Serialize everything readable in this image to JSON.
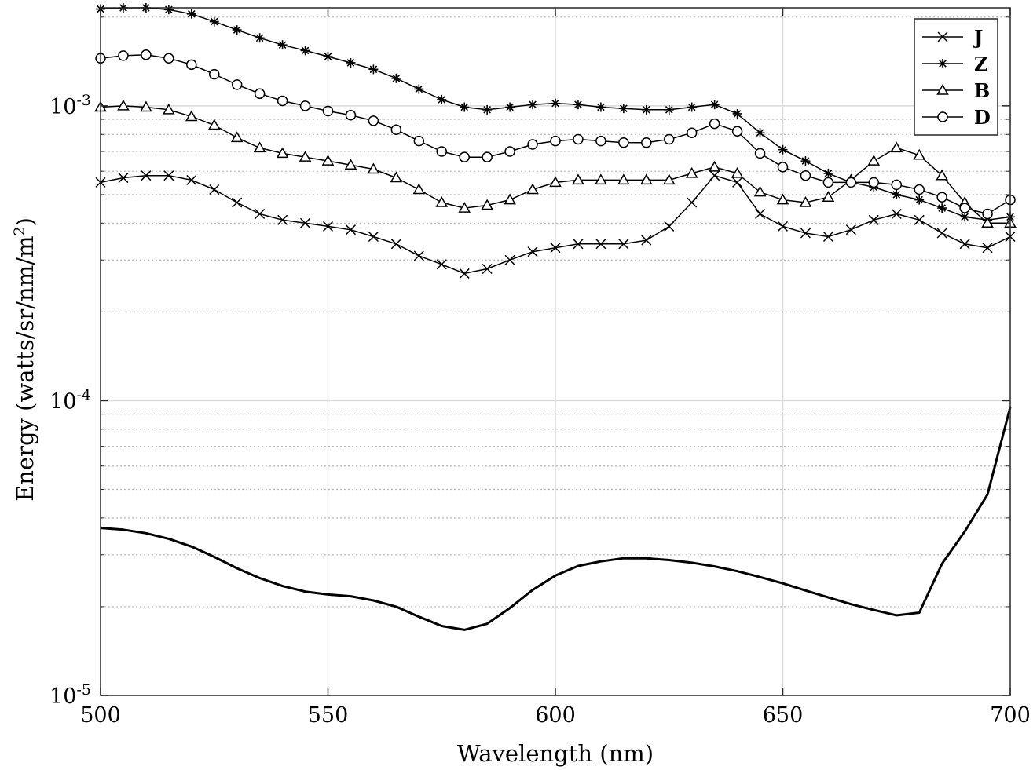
{
  "chart_data": {
    "type": "line",
    "xlabel": "Wavelength (nm)",
    "ylabel": "Energy (watts/sr/nm/m",
    "ylabel_sup": "2",
    "ylabel_end": ")",
    "xlim": [
      500,
      700
    ],
    "ylim": [
      1e-05,
      0.00215
    ],
    "yscale": "log",
    "grid": true,
    "minor_grid": "y",
    "legend_position": "top-right",
    "x_ticks": [
      500,
      550,
      600,
      650,
      700
    ],
    "x_tick_labels": [
      "500",
      "550",
      "600",
      "650",
      "700"
    ],
    "y_ticks": [
      {
        "value": 1e-05,
        "base": "10",
        "exp": "-5"
      },
      {
        "value": 0.0001,
        "base": "10",
        "exp": "-4"
      },
      {
        "value": 0.001,
        "base": "10",
        "exp": "-3"
      }
    ],
    "x": [
      500,
      505,
      510,
      515,
      520,
      525,
      530,
      535,
      540,
      545,
      550,
      555,
      560,
      565,
      570,
      575,
      580,
      585,
      590,
      595,
      600,
      605,
      610,
      615,
      620,
      625,
      630,
      635,
      640,
      645,
      650,
      655,
      660,
      665,
      670,
      675,
      680,
      685,
      690,
      695,
      700
    ],
    "series": [
      {
        "name": "J",
        "marker": "x",
        "values": [
          0.00055,
          0.00057,
          0.00058,
          0.00058,
          0.00056,
          0.00052,
          0.00047,
          0.00043,
          0.00041,
          0.0004,
          0.00039,
          0.00038,
          0.00036,
          0.00034,
          0.00031,
          0.00029,
          0.00027,
          0.00028,
          0.0003,
          0.00032,
          0.00033,
          0.00034,
          0.00034,
          0.00034,
          0.00035,
          0.00039,
          0.00047,
          0.00058,
          0.00055,
          0.00043,
          0.00039,
          0.00037,
          0.00036,
          0.00038,
          0.00041,
          0.00043,
          0.00041,
          0.00037,
          0.00034,
          0.00033,
          0.00036
        ]
      },
      {
        "name": "Z",
        "marker": "asterisk",
        "values": [
          0.00213,
          0.00215,
          0.00215,
          0.00212,
          0.00205,
          0.00193,
          0.00181,
          0.0017,
          0.00161,
          0.00154,
          0.00147,
          0.0014,
          0.00133,
          0.00124,
          0.00114,
          0.00105,
          0.00099,
          0.00097,
          0.00099,
          0.00101,
          0.00102,
          0.00101,
          0.00099,
          0.00098,
          0.00097,
          0.00097,
          0.00099,
          0.00101,
          0.00094,
          0.00081,
          0.00071,
          0.00065,
          0.00059,
          0.00055,
          0.00053,
          0.0005,
          0.00048,
          0.00045,
          0.00042,
          0.00041,
          0.00042
        ]
      },
      {
        "name": "B",
        "marker": "triangle",
        "values": [
          0.00099,
          0.001,
          0.00099,
          0.00097,
          0.00092,
          0.00086,
          0.00078,
          0.00072,
          0.00069,
          0.00067,
          0.00065,
          0.00063,
          0.00061,
          0.00057,
          0.00052,
          0.00047,
          0.00045,
          0.00046,
          0.00048,
          0.00052,
          0.00055,
          0.00056,
          0.00056,
          0.00056,
          0.00056,
          0.00056,
          0.00059,
          0.00062,
          0.00059,
          0.00051,
          0.00048,
          0.00047,
          0.00049,
          0.00056,
          0.00065,
          0.00072,
          0.00068,
          0.00058,
          0.00047,
          0.0004,
          0.0004
        ]
      },
      {
        "name": "D",
        "marker": "circle",
        "values": [
          0.00145,
          0.00148,
          0.00149,
          0.00145,
          0.00138,
          0.00128,
          0.00118,
          0.0011,
          0.00104,
          0.001,
          0.00096,
          0.00093,
          0.00089,
          0.00083,
          0.00076,
          0.0007,
          0.00067,
          0.00067,
          0.0007,
          0.00074,
          0.00076,
          0.00077,
          0.00076,
          0.00075,
          0.00075,
          0.00077,
          0.00081,
          0.00087,
          0.00082,
          0.00069,
          0.00062,
          0.00058,
          0.00055,
          0.00055,
          0.00055,
          0.00054,
          0.00052,
          0.00049,
          0.00045,
          0.00043,
          0.00048
        ]
      },
      {
        "name": "",
        "marker": "none",
        "bold": true,
        "values": [
          3.7e-05,
          3.65e-05,
          3.55e-05,
          3.4e-05,
          3.2e-05,
          2.95e-05,
          2.7e-05,
          2.5e-05,
          2.35e-05,
          2.25e-05,
          2.2e-05,
          2.17e-05,
          2.1e-05,
          2e-05,
          1.85e-05,
          1.72e-05,
          1.67e-05,
          1.75e-05,
          1.98e-05,
          2.28e-05,
          2.55e-05,
          2.75e-05,
          2.85e-05,
          2.92e-05,
          2.92e-05,
          2.88e-05,
          2.82e-05,
          2.74e-05,
          2.64e-05,
          2.52e-05,
          2.4e-05,
          2.27e-05,
          2.15e-05,
          2.04e-05,
          1.95e-05,
          1.87e-05,
          1.91e-05,
          2.8e-05,
          3.6e-05,
          4.8e-05,
          9.5e-05
        ]
      }
    ]
  }
}
